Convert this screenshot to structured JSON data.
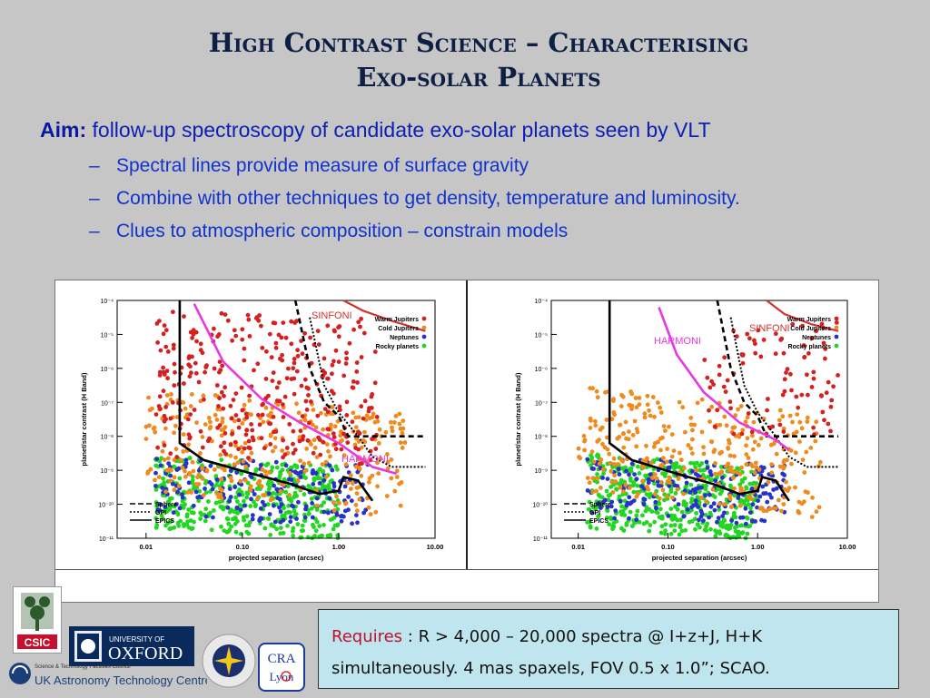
{
  "slide": {
    "title_line1": "High Contrast Science – Characterising",
    "title_line2": "Exo-solar Planets",
    "aim_label": "Aim:",
    "aim_text": " follow-up spectroscopy of candidate exo-solar planets seen by VLT",
    "bullets": [
      "Spectral lines provide measure of surface gravity",
      "Combine with other techniques to get density, temperature and luminosity.",
      "Clues to atmospheric composition – constrain models"
    ],
    "dash": "–"
  },
  "plots": {
    "ylabel": "planet/star contrast (H Band)",
    "xlabel": "projected separation (arcsec)",
    "y_ticks": [
      "10⁻⁴",
      "10⁻⁵",
      "10⁻⁶",
      "10⁻⁷",
      "10⁻⁸",
      "10⁻⁹",
      "10⁻¹⁰",
      "10⁻¹¹"
    ],
    "x_ticks": [
      "0.01",
      "0.10",
      "1.00",
      "10.00"
    ],
    "legend_pop": [
      "Warm Jupiters",
      "Cold Jupiters",
      "Neptunes",
      "Rocky planets"
    ],
    "legend_inst": [
      "Sphere",
      "GPI",
      "EPICS"
    ],
    "label_sinfoni": "SINFONI",
    "label_harmoni": "HARMONI",
    "colors": {
      "warm": "#d42020",
      "cold": "#f08a1c",
      "nep": "#2632c8",
      "rocky": "#22d622",
      "harmoni": "#e838e0",
      "sinfoni": "#d43030"
    }
  },
  "requires": {
    "label": "Requires",
    "line1": " :  R > 4,000 – 20,000 spectra @ I+z+J, H+K",
    "line2": "simultaneously. 4 mas spaxels,  FOV 0.5 x 1.0”; SCAO."
  },
  "logos": {
    "csic": "CSIC",
    "oxford_top": "UNIVERSITY OF",
    "oxford_main": "OXFORD",
    "stfc": "Science & Technology Facilities Council",
    "ukatc": "UK Astronomy Technology Centre",
    "cra_top": "CRA",
    "cra_bottom": "Lyon"
  }
}
